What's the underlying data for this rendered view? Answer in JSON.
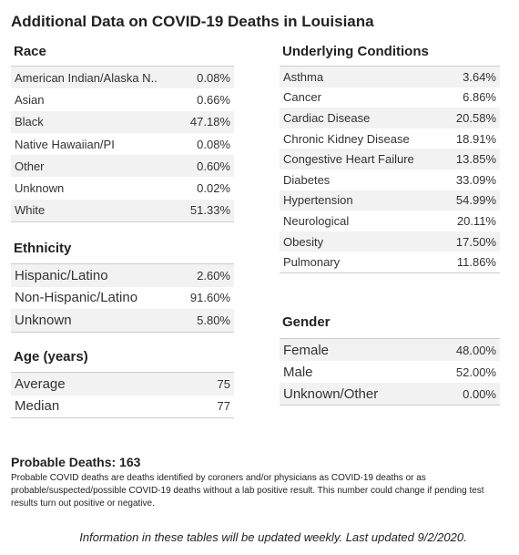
{
  "title": "Additional Data on COVID-19 Deaths in Louisiana",
  "sections": [
    {
      "heading": "Race",
      "rows": [
        [
          "American Indian/Alaska N..",
          "0.08%"
        ],
        [
          "Asian",
          "0.66%"
        ],
        [
          "Black",
          "47.18%"
        ],
        [
          "Native Hawaiian/PI",
          "0.08%"
        ],
        [
          "Other",
          "0.60%"
        ],
        [
          "Unknown",
          "0.02%"
        ],
        [
          "White",
          "51.33%"
        ]
      ]
    },
    {
      "heading": "Ethnicity",
      "rows": [
        [
          "Hispanic/Latino",
          "2.60%"
        ],
        [
          "Non-Hispanic/Latino",
          "91.60%"
        ],
        [
          "Unknown",
          "5.80%"
        ]
      ]
    },
    {
      "heading": "Age (years)",
      "rows": [
        [
          "Average",
          "75"
        ],
        [
          "Median",
          "77"
        ]
      ]
    },
    {
      "heading": "Underlying Conditions",
      "rows": [
        [
          "Asthma",
          "3.64%"
        ],
        [
          "Cancer",
          "6.86%"
        ],
        [
          "Cardiac Disease",
          "20.58%"
        ],
        [
          "Chronic Kidney Disease",
          "18.91%"
        ],
        [
          "Congestive Heart Failure",
          "13.85%"
        ],
        [
          "Diabetes",
          "33.09%"
        ],
        [
          "Hypertension",
          "54.99%"
        ],
        [
          "Neurological",
          "20.11%"
        ],
        [
          "Obesity",
          "17.50%"
        ],
        [
          "Pulmonary",
          "11.86%"
        ]
      ]
    },
    {
      "heading": "Gender",
      "rows": [
        [
          "Female",
          "48.00%"
        ],
        [
          "Male",
          "52.00%"
        ],
        [
          "Unknown/Other",
          "0.00%"
        ]
      ]
    }
  ],
  "probable": {
    "label": "Probable Deaths:",
    "value": "163",
    "note": "Probable COVID deaths are deaths identified by coroners and/or physicians as COVID-19 deaths or as probable/suspected/possible COVID-19 deaths without a lab positive result. This number could change if pending test results turn out positive or negative."
  },
  "footer": "Information in these tables will be updated weekly. Last updated 9/2/2020."
}
